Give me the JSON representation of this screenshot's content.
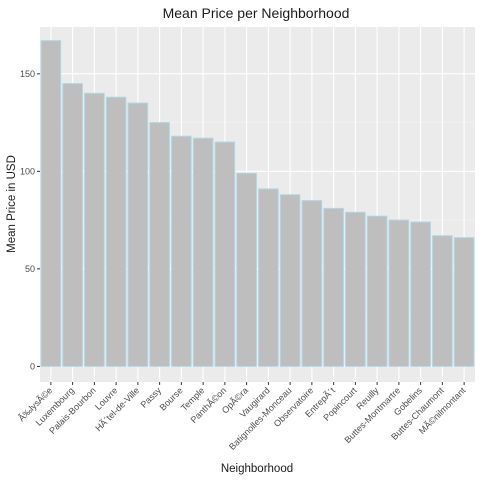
{
  "chart_data": {
    "type": "bar",
    "title": "Mean Price per Neighborhood",
    "xlabel": "Neighborhood",
    "ylabel": "Mean Price in USD",
    "ylim": [
      -8,
      174
    ],
    "yticks": [
      0,
      50,
      100,
      150
    ],
    "grid": true,
    "legend": "none",
    "categories": [
      "Ã‰lysÃ©e",
      "Luxembourg",
      "Palais-Bourbon",
      "Louvre",
      "HÃ´tel-de-Ville",
      "Passy",
      "Bourse",
      "Temple",
      "PanthÃ©on",
      "OpÃ©ra",
      "Vaugirard",
      "Batignolles-Monceau",
      "Observatoire",
      "EntrepÃ´t",
      "Popincourt",
      "Reuilly",
      "Buttes-Montmartre",
      "Gobelins",
      "Buttes-Chaumont",
      "MÃ©nilmontant"
    ],
    "values": [
      167,
      145,
      140,
      138,
      135,
      125,
      118,
      117,
      115,
      99,
      91,
      88,
      85,
      81,
      79,
      77,
      75,
      74,
      67,
      66
    ],
    "colors": {
      "bar_fill": "#bebebe",
      "bar_stroke": "#add8e6",
      "panel_background": "#ebebeb",
      "grid_major": "#ffffff",
      "grid_minor": "#f4f4f4",
      "tick": "#333333"
    }
  }
}
